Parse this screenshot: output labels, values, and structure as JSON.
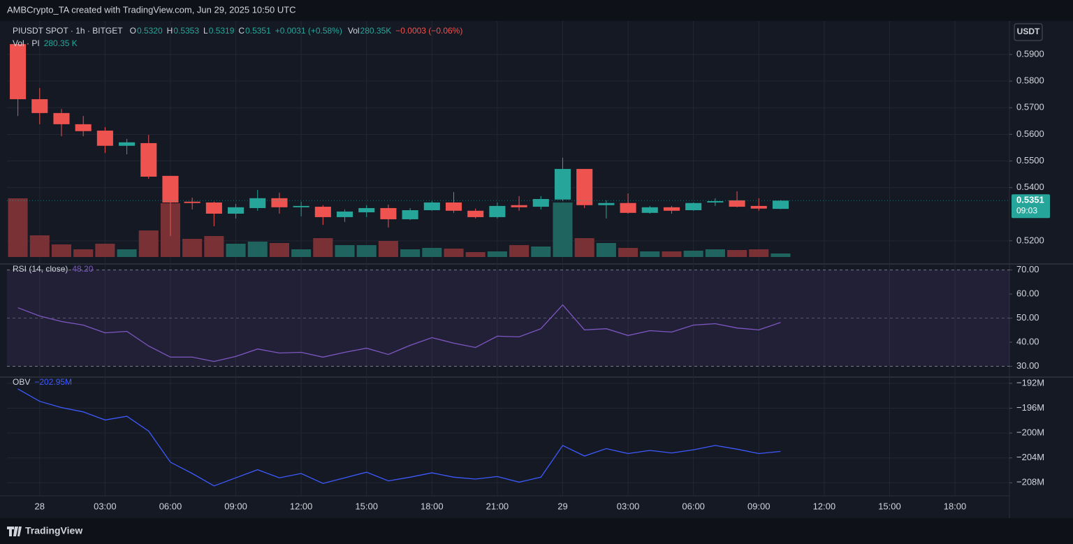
{
  "header": {
    "text": "AMBCrypto_TA created with TradingView.com, Jun 29, 2025 10:50 UTC"
  },
  "footer": {
    "brand": "TradingView"
  },
  "currency_button": "USDT",
  "chart_data": [
    {
      "type": "candlestick",
      "legend": {
        "symbol": "PIUSDT SPOT · 1h · BITGET",
        "ohlc": [
          {
            "label": "O",
            "value": "0.5320"
          },
          {
            "label": "H",
            "value": "0.5353"
          },
          {
            "label": "L",
            "value": "0.5319"
          },
          {
            "label": "C",
            "value": "0.5351"
          }
        ],
        "change": "+0.0031 (+0.58%)",
        "volume_label": "Vol",
        "volume_value": "280.35K",
        "volume_change": "−0.0003 (−0.06%)"
      },
      "volume_title": "Vol · PI",
      "volume_last": "280.35 K",
      "x": [
        -1,
        0,
        1,
        2,
        3,
        4,
        5,
        6,
        7,
        8,
        9,
        10,
        11,
        12,
        13,
        14,
        15,
        16,
        17,
        18,
        19,
        20,
        21,
        22,
        23,
        24,
        25,
        26,
        27,
        28,
        29,
        30,
        31,
        32,
        33,
        34
      ],
      "open": [
        0.5939,
        0.5732,
        0.568,
        0.5638,
        0.5614,
        0.5557,
        0.5567,
        0.5444,
        0.5347,
        0.5344,
        0.5302,
        0.5323,
        0.536,
        0.5326,
        0.5328,
        0.5289,
        0.5307,
        0.5323,
        0.5281,
        0.5315,
        0.5344,
        0.5313,
        0.5289,
        0.5334,
        0.5328,
        0.5355,
        0.547,
        0.5334,
        0.5342,
        0.5305,
        0.5326,
        0.5315,
        0.5344,
        0.5352,
        0.5331,
        0.532
      ],
      "high": [
        0.594,
        0.5774,
        0.5695,
        0.5669,
        0.5627,
        0.5583,
        0.5598,
        0.5444,
        0.5362,
        0.5347,
        0.5339,
        0.5391,
        0.5381,
        0.5347,
        0.5334,
        0.5318,
        0.5334,
        0.5336,
        0.5323,
        0.5349,
        0.5383,
        0.5321,
        0.5344,
        0.5368,
        0.5368,
        0.5512,
        0.547,
        0.5352,
        0.5378,
        0.5331,
        0.5331,
        0.5344,
        0.536,
        0.5386,
        0.536,
        0.5353
      ],
      "low": [
        0.5669,
        0.5638,
        0.5593,
        0.5593,
        0.553,
        0.5525,
        0.5433,
        0.5218,
        0.5318,
        0.5255,
        0.5284,
        0.5313,
        0.5302,
        0.5292,
        0.526,
        0.5271,
        0.5289,
        0.525,
        0.5278,
        0.5313,
        0.5305,
        0.5284,
        0.5284,
        0.5313,
        0.5318,
        0.535,
        0.5323,
        0.5284,
        0.5302,
        0.5302,
        0.5302,
        0.5313,
        0.5331,
        0.5326,
        0.5313,
        0.5319
      ],
      "close": [
        0.5732,
        0.568,
        0.5638,
        0.5612,
        0.5557,
        0.557,
        0.5441,
        0.5344,
        0.5342,
        0.5302,
        0.5326,
        0.536,
        0.5326,
        0.5331,
        0.5289,
        0.531,
        0.5323,
        0.5281,
        0.5315,
        0.5344,
        0.5313,
        0.5289,
        0.5331,
        0.5326,
        0.5357,
        0.547,
        0.5334,
        0.5342,
        0.5305,
        0.5326,
        0.5313,
        0.5342,
        0.5349,
        0.5328,
        0.5321,
        0.5351
      ],
      "volume": [
        4710,
        1738,
        1009,
        617,
        1065,
        617,
        2131,
        4317,
        1458,
        1682,
        1065,
        1234,
        1121,
        617,
        1514,
        953,
        953,
        1290,
        617,
        729,
        673,
        392,
        449,
        953,
        841,
        4373,
        1514,
        1121,
        729,
        449,
        449,
        505,
        617,
        561,
        617,
        280.35
      ],
      "volume_ylim": [
        0,
        6000
      ],
      "up_color": "#26a69a",
      "down_color": "#ef5350",
      "volume_up_color": "#1f645e",
      "volume_down_color": "#7a3136",
      "xlim": [
        -1.5,
        44.5
      ],
      "ylim": [
        0.5113,
        0.6026
      ],
      "yticks": [
        {
          "value": 0.52,
          "label": "0.5200"
        },
        {
          "value": 0.54,
          "label": "0.5400"
        },
        {
          "value": 0.55,
          "label": "0.5500"
        },
        {
          "value": 0.56,
          "label": "0.5600"
        },
        {
          "value": 0.57,
          "label": "0.5700"
        },
        {
          "value": 0.58,
          "label": "0.5800"
        },
        {
          "value": 0.59,
          "label": "0.5900"
        }
      ],
      "last_price": 0.5351,
      "countdown": "09:03",
      "grid": true
    },
    {
      "type": "line",
      "title": "RSI (14, close)",
      "legend_value": {
        "value": 48.2,
        "label": "48.20"
      },
      "x": [
        -1,
        0,
        1,
        2,
        3,
        4,
        5,
        6,
        7,
        8,
        9,
        10,
        11,
        12,
        13,
        14,
        15,
        16,
        17,
        18,
        19,
        20,
        21,
        22,
        23,
        24,
        25,
        26,
        27,
        28,
        29,
        30,
        31,
        32,
        33,
        34
      ],
      "values": [
        54.3,
        50.9,
        48.6,
        47.1,
        43.9,
        44.5,
        38.4,
        33.8,
        33.8,
        32.0,
        34.1,
        37.2,
        35.5,
        35.8,
        33.8,
        35.8,
        37.5,
        34.9,
        38.7,
        41.9,
        39.6,
        37.8,
        42.5,
        42.2,
        45.6,
        55.5,
        45.1,
        45.6,
        42.8,
        44.8,
        44.2,
        47.1,
        47.7,
        45.9,
        45.1,
        48.2
      ],
      "color": "#7e57c2",
      "band": [
        30,
        70
      ],
      "midline": 50,
      "band_color": "#7e57c2",
      "xlim": [
        -1.5,
        44.5
      ],
      "ylim": [
        25.5,
        72.5
      ],
      "yticks": [
        {
          "value": 30,
          "label": "30.00"
        },
        {
          "value": 40,
          "label": "40.00"
        },
        {
          "value": 50,
          "label": "50.00"
        },
        {
          "value": 60,
          "label": "60.00"
        },
        {
          "value": 70,
          "label": "70.00"
        }
      ],
      "grid": false
    },
    {
      "type": "line",
      "title": "OBV",
      "legend_value": {
        "value": -202.95,
        "label": "−202.95M"
      },
      "x": [
        -1,
        0,
        1,
        2,
        3,
        4,
        5,
        6,
        7,
        8,
        9,
        10,
        11,
        12,
        13,
        14,
        15,
        16,
        17,
        18,
        19,
        20,
        21,
        22,
        23,
        24,
        25,
        26,
        27,
        28,
        29,
        30,
        31,
        32,
        33,
        34
      ],
      "values": [
        -192.9,
        -194.9,
        -195.9,
        -196.6,
        -197.9,
        -197.3,
        -199.7,
        -204.7,
        -206.5,
        -208.5,
        -207.2,
        -205.9,
        -207.2,
        -206.5,
        -208.1,
        -207.2,
        -206.3,
        -207.7,
        -207.1,
        -206.4,
        -207.1,
        -207.4,
        -207.0,
        -207.9,
        -207.1,
        -202.0,
        -203.7,
        -202.5,
        -203.3,
        -202.8,
        -203.2,
        -202.7,
        -202.0,
        -202.6,
        -203.3,
        -202.95
      ],
      "color": "#3d5afe",
      "xlim": [
        -1.5,
        44.5
      ],
      "ylim": [
        -210.1,
        -191.0
      ],
      "yticks": [
        {
          "value": -208,
          "label": "−208M"
        },
        {
          "value": -204,
          "label": "−204M"
        },
        {
          "value": -200,
          "label": "−200M"
        },
        {
          "value": -196,
          "label": "−196M"
        },
        {
          "value": -192,
          "label": "−192M"
        }
      ],
      "xticks": [
        {
          "value": 0,
          "label": "28"
        },
        {
          "value": 3,
          "label": "03:00"
        },
        {
          "value": 6,
          "label": "06:00"
        },
        {
          "value": 9,
          "label": "09:00"
        },
        {
          "value": 12,
          "label": "12:00"
        },
        {
          "value": 15,
          "label": "15:00"
        },
        {
          "value": 18,
          "label": "18:00"
        },
        {
          "value": 21,
          "label": "21:00"
        },
        {
          "value": 24,
          "label": "29"
        },
        {
          "value": 27,
          "label": "03:00"
        },
        {
          "value": 30,
          "label": "06:00"
        },
        {
          "value": 33,
          "label": "09:00"
        },
        {
          "value": 36,
          "label": "12:00"
        },
        {
          "value": 39,
          "label": "15:00"
        },
        {
          "value": 42,
          "label": "18:00"
        }
      ],
      "grid": true
    }
  ]
}
